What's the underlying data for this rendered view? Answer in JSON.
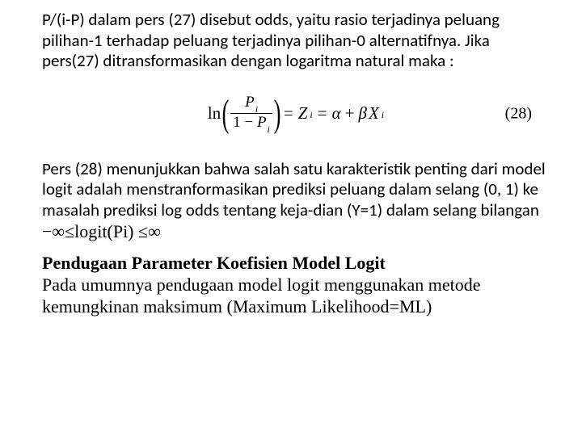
{
  "para1": "P/(i-P) dalam pers (27) disebut odds, yaitu rasio terjadinya peluang pilihan-1 terhadap peluang terjadinya pilihan-0 alternatifnya. Jika pers(27) ditransformasikan dengan logaritma natural maka :",
  "equation": {
    "ln": "ln",
    "num_P": "P",
    "num_i": "i",
    "den_one": "1",
    "den_minus": "−",
    "den_P": "P",
    "den_i": "i",
    "eq1": "=",
    "Z": "Z",
    "Zi": "i",
    "eq2": "=",
    "alpha": "α",
    "plus": "+",
    "beta": "β",
    "X": "X",
    "Xi": "i",
    "label": "(28)"
  },
  "para2_a": "Pers (28) menunjukkan bahwa salah satu karakteristik penting dari model logit adalah  menstranformasikan prediksi peluang dalam selang (0, 1) ke masalah prediksi log odds tentang keja-dian (Y=1) dalam selang bilangan  ",
  "para2_math": "−∞≤logit(Pi) ≤∞",
  "heading": "Pendugaan Parameter Koefisien Model Logit",
  "para3": "Pada umumnya pendugaan model logit menggunakan metode kemungkinan maksimum (Maximum Likelihood=ML)"
}
